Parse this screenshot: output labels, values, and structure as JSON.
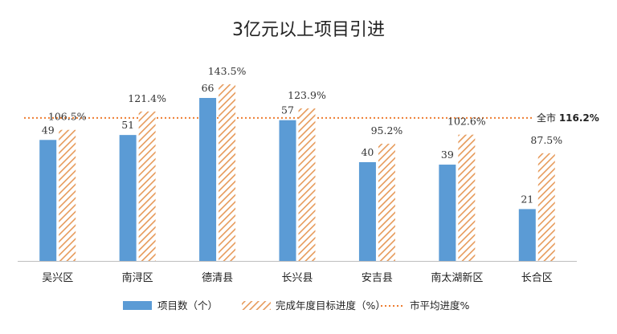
{
  "chart_data": {
    "type": "bar",
    "title": "3亿元以上项目引进",
    "categories": [
      "吴兴区",
      "南浔区",
      "德清县",
      "长兴县",
      "安吉县",
      "南太湖新区",
      "长合区"
    ],
    "series": [
      {
        "name": "项目数（个）",
        "values": [
          49,
          51,
          66,
          57,
          40,
          39,
          21
        ],
        "labels": [
          "49",
          "51",
          "66",
          "57",
          "40",
          "39",
          "21"
        ],
        "color": "#5b9bd5"
      },
      {
        "name": "完成年度目标进度（%）",
        "values": [
          106.5,
          121.4,
          143.5,
          123.9,
          95.2,
          102.6,
          87.5
        ],
        "labels": [
          "106.5%",
          "121.4%",
          "143.5%",
          "123.9%",
          "95.2%",
          "102.6%",
          "87.5%"
        ],
        "color": "#e69a5a"
      }
    ],
    "average": {
      "name": "市平均进度%",
      "value": 116.2,
      "label_prefix": "全市",
      "label_value": "116.2%",
      "color": "#ed7d31"
    },
    "grid": false,
    "legend_position": "bottom"
  }
}
